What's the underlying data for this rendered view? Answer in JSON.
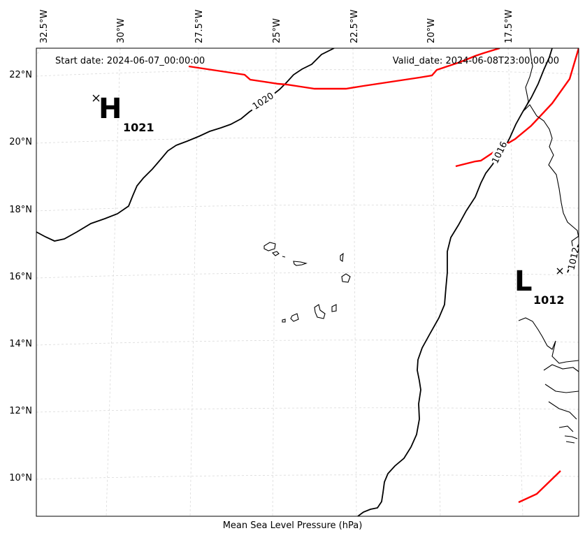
{
  "header": {
    "start_date": "Start date: 2024-06-07_00:00:00",
    "valid_date": "Valid_date: 2024-06-08T23:00:00.00"
  },
  "footer": {
    "label": "Mean Sea Level Pressure (hPa)"
  },
  "axes": {
    "lon_ticks": [
      "32.5°W",
      "30°W",
      "27.5°W",
      "25°W",
      "22.5°W",
      "20°W",
      "17.5°W"
    ],
    "lat_ticks": [
      "22°N",
      "20°N",
      "18°N",
      "16°N",
      "14°N",
      "12°N",
      "10°N"
    ]
  },
  "pressure_centers": {
    "high": {
      "letter": "H",
      "value": "1021"
    },
    "low": {
      "letter": "L",
      "value": "1012"
    }
  },
  "isobar_labels": {
    "a": "1020",
    "b": "1016",
    "c": "1012"
  },
  "colors": {
    "isobar": "#000000",
    "front": "#ff0000",
    "grid": "#cccccc",
    "coast": "#000000"
  }
}
